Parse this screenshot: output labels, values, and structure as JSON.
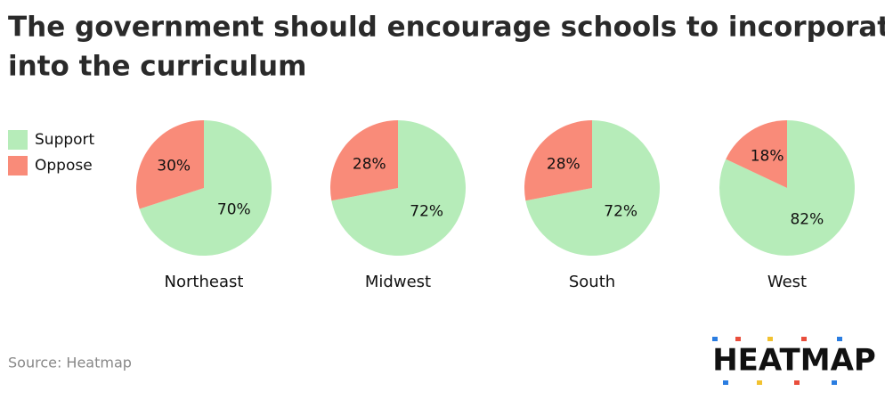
{
  "title": "The government should encourage schools to incorporate climate change into the curriculum",
  "source": "Source: Heatmap",
  "logo": "HEATMAP",
  "chart_data": [
    {
      "type": "pie",
      "title": "Northeast",
      "categories": [
        "Support",
        "Oppose"
      ],
      "values": [
        70,
        30
      ],
      "value_labels": [
        "70%",
        "30%"
      ],
      "colors": [
        "#b6ecb9",
        "#f98b79"
      ]
    },
    {
      "type": "pie",
      "title": "Midwest",
      "categories": [
        "Support",
        "Oppose"
      ],
      "values": [
        72,
        28
      ],
      "value_labels": [
        "72%",
        "28%"
      ],
      "colors": [
        "#b6ecb9",
        "#f98b79"
      ]
    },
    {
      "type": "pie",
      "title": "South",
      "categories": [
        "Support",
        "Oppose"
      ],
      "values": [
        72,
        28
      ],
      "value_labels": [
        "72%",
        "28%"
      ],
      "colors": [
        "#b6ecb9",
        "#f98b79"
      ]
    },
    {
      "type": "pie",
      "title": "West",
      "categories": [
        "Support",
        "Oppose"
      ],
      "values": [
        82,
        18
      ],
      "value_labels": [
        "82%",
        "18%"
      ],
      "colors": [
        "#b6ecb9",
        "#f98b79"
      ]
    }
  ]
}
